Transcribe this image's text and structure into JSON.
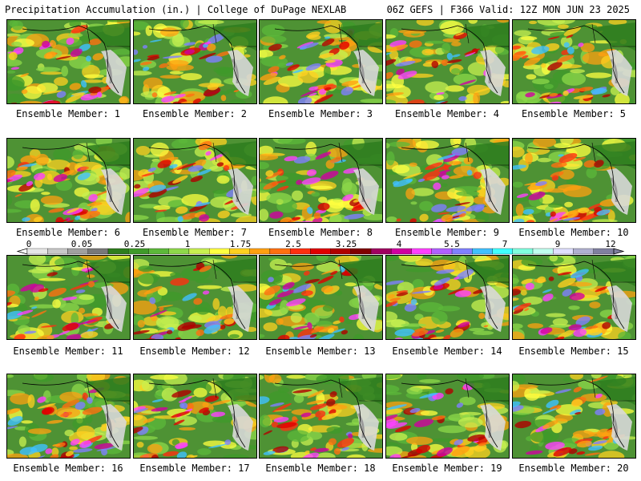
{
  "header": {
    "title_left": "Precipitation Accumulation (in.) | College of DuPage NEXLAB",
    "title_right": "06Z GEFS | F366 Valid: 12Z MON JUN 23 2025"
  },
  "panels": [
    {
      "label": "Ensemble Member: 1"
    },
    {
      "label": "Ensemble Member: 2"
    },
    {
      "label": "Ensemble Member: 3"
    },
    {
      "label": "Ensemble Member: 4"
    },
    {
      "label": "Ensemble Member: 5"
    },
    {
      "label": "Ensemble Member: 6"
    },
    {
      "label": "Ensemble Member: 7"
    },
    {
      "label": "Ensemble Member: 8"
    },
    {
      "label": "Ensemble Member: 9"
    },
    {
      "label": "Ensemble Member: 10"
    },
    {
      "label": "Ensemble Member: 11"
    },
    {
      "label": "Ensemble Member: 12"
    },
    {
      "label": "Ensemble Member: 13"
    },
    {
      "label": "Ensemble Member: 14"
    },
    {
      "label": "Ensemble Member: 15"
    },
    {
      "label": "Ensemble Member: 16"
    },
    {
      "label": "Ensemble Member: 17"
    },
    {
      "label": "Ensemble Member: 18"
    },
    {
      "label": "Ensemble Member: 19"
    },
    {
      "label": "Ensemble Member: 20"
    }
  ],
  "colorbar": {
    "tick_labels": [
      "0",
      "0.05",
      "0.25",
      "1",
      "1.75",
      "2.5",
      "3.25",
      "4",
      "5.5",
      "7",
      "9",
      "12"
    ],
    "colors": [
      "#e6e6e6",
      "#c8c8c8",
      "#a0a0a0",
      "#787878",
      "#2e7d1e",
      "#3f9a2a",
      "#5cb83a",
      "#8ed84a",
      "#c8f050",
      "#ffff40",
      "#ffd020",
      "#ffa010",
      "#ff7010",
      "#ff3010",
      "#e00000",
      "#b00000",
      "#800000",
      "#a00060",
      "#d000a0",
      "#ff40ff",
      "#b060ff",
      "#8080ff",
      "#40c0ff",
      "#40ffff",
      "#80ffe0",
      "#c0fff0",
      "#e0e0ff",
      "#b0b0d0",
      "#8080a0"
    ]
  }
}
